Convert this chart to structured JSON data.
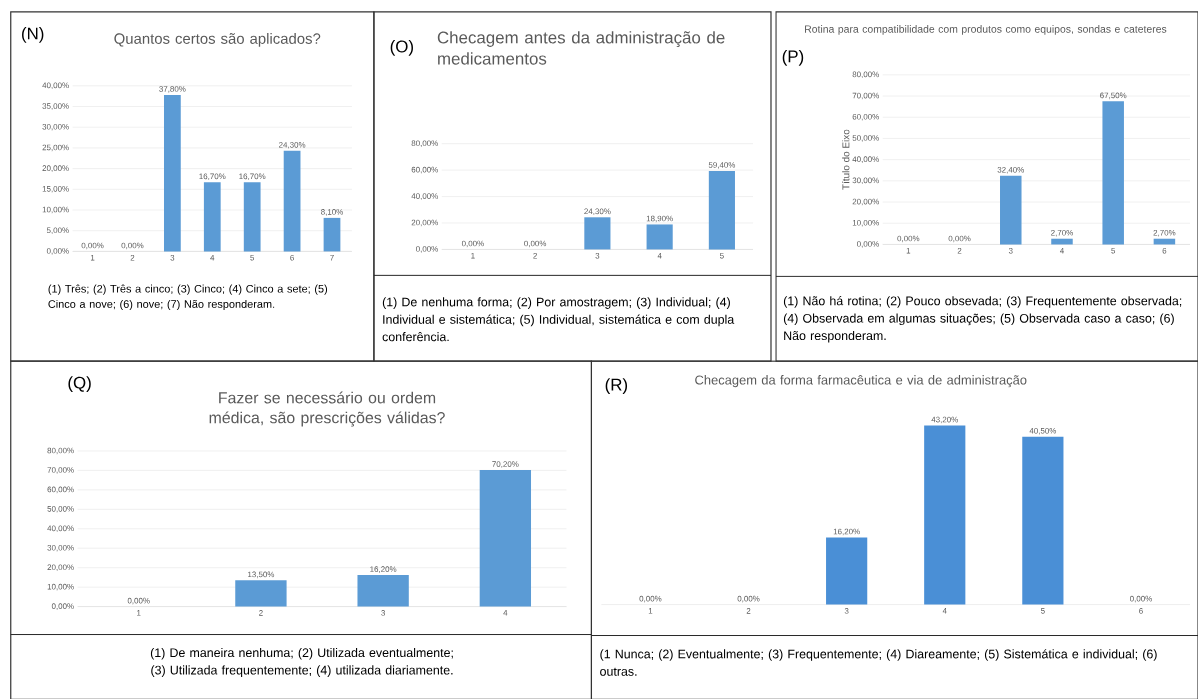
{
  "chart_data": [
    {
      "type": "bar",
      "title": "Quantos certos são aplicados?",
      "categories": [
        "1",
        "2",
        "3",
        "4",
        "5",
        "6",
        "7"
      ],
      "values": [
        0,
        0,
        37.8,
        16.7,
        16.7,
        24.3,
        8.1
      ],
      "value_labels": [
        "0,00%",
        "0,00%",
        "37,80%",
        "16,70%",
        "16,70%",
        "24,30%",
        "8,10%"
      ],
      "color": "#5b9bd5",
      "ylim": [
        0,
        40
      ],
      "yticks": [
        {
          "value": 0,
          "label": "0,00%"
        },
        {
          "value": 5,
          "label": "5,00%"
        },
        {
          "value": 10,
          "label": "10,00%"
        },
        {
          "value": 15,
          "label": "15,00%"
        },
        {
          "value": 20,
          "label": "20,00%"
        },
        {
          "value": 25,
          "label": "25,00%"
        },
        {
          "value": 30,
          "label": "30,00%"
        },
        {
          "value": 35,
          "label": "35,00%"
        },
        {
          "value": 40,
          "label": "40,00%"
        }
      ],
      "grid": "y",
      "annotations": [
        "(N)",
        "(1) Três; (2) Três a cinco; (3) Cinco; (4) Cinco a sete; (5) Cinco a nove; (6) nove; (7) Não responderam."
      ]
    },
    {
      "type": "bar",
      "title": "Checagem antes da administração de medicamentos",
      "categories": [
        "1",
        "2",
        "3",
        "4",
        "5"
      ],
      "values": [
        0,
        0,
        24.3,
        18.9,
        59.4
      ],
      "value_labels": [
        "0,00%",
        "0,00%",
        "24,30%",
        "18,90%",
        "59,40%"
      ],
      "color": "#5b9bd5",
      "ylim": [
        0,
        80
      ],
      "yticks": [
        {
          "value": 0,
          "label": "0,00%"
        },
        {
          "value": 20,
          "label": "20,00%"
        },
        {
          "value": 40,
          "label": "40,00%"
        },
        {
          "value": 60,
          "label": "60,00%"
        },
        {
          "value": 80,
          "label": "80,00%"
        }
      ],
      "grid": "y",
      "annotations": [
        "(O)",
        "(1) De nenhuma forma; (2) Por amostragem; (3) Individual; (4) Individual e sistemática; (5) Individual, sistemática e com dupla conferência."
      ]
    },
    {
      "type": "bar",
      "title": "Rotina para compatibilidade com produtos como equipos, sondas e cateteres",
      "ylabel": "Título do Eixo",
      "categories": [
        "1",
        "2",
        "3",
        "4",
        "5",
        "6"
      ],
      "values": [
        0,
        0,
        32.4,
        2.7,
        67.5,
        2.7
      ],
      "value_labels": [
        "0,00%",
        "0,00%",
        "32,40%",
        "2,70%",
        "67,50%",
        "2,70%"
      ],
      "color": "#5b9bd5",
      "ylim": [
        0,
        80
      ],
      "yticks": [
        {
          "value": 0,
          "label": "0,00%"
        },
        {
          "value": 10,
          "label": "10,00%"
        },
        {
          "value": 20,
          "label": "20,00%"
        },
        {
          "value": 30,
          "label": "30,00%"
        },
        {
          "value": 40,
          "label": "40,00%"
        },
        {
          "value": 50,
          "label": "50,00%"
        },
        {
          "value": 60,
          "label": "60,00%"
        },
        {
          "value": 70,
          "label": "70,00%"
        },
        {
          "value": 80,
          "label": "80,00%"
        }
      ],
      "grid": "y",
      "annotations": [
        "(P)",
        "(1) Não há rotina; (2) Pouco obsevada; (3) Frequentemente observada; (4) Observada em algumas  situações; (5) Observada caso a caso; (6) Não responderam."
      ]
    },
    {
      "type": "bar",
      "title": "Fazer se necessário ou  ordem médica, são prescrições válidas?",
      "categories": [
        "1",
        "2",
        "3",
        "4"
      ],
      "values": [
        0,
        13.5,
        16.2,
        70.2
      ],
      "value_labels": [
        "0,00%",
        "13,50%",
        "16,20%",
        "70,20%"
      ],
      "color": "#5b9bd5",
      "ylim": [
        0,
        80
      ],
      "yticks": [
        {
          "value": 0,
          "label": "0,00%"
        },
        {
          "value": 10,
          "label": "10,00%"
        },
        {
          "value": 20,
          "label": "20,00%"
        },
        {
          "value": 30,
          "label": "30,00%"
        },
        {
          "value": 40,
          "label": "40,00%"
        },
        {
          "value": 50,
          "label": "50,00%"
        },
        {
          "value": 60,
          "label": "60,00%"
        },
        {
          "value": 70,
          "label": "70,00%"
        },
        {
          "value": 80,
          "label": "80,00%"
        }
      ],
      "grid": "y",
      "annotations": [
        "(Q)",
        "(1) De maneira nenhuma; (2) Utilizada eventualmente; (3) Utilizada frequentemente; (4) utilizada diariamente."
      ]
    },
    {
      "type": "bar",
      "title": "Checagem da forma farmacêutica e via de administração",
      "categories": [
        "1",
        "2",
        "3",
        "4",
        "5",
        "6"
      ],
      "values": [
        0,
        0,
        16.2,
        43.2,
        40.5,
        0
      ],
      "value_labels": [
        "0,00%",
        "0,00%",
        "16,20%",
        "43,20%",
        "40,50%",
        "0,00%"
      ],
      "color": "#4a8fd6",
      "tick_labels": "x",
      "annotations": [
        "(R)",
        "(1 Nunca; (2) Eventualmente; (3) Frequentemente; (4) Diareamente; (5) Sistemática e individual; (6) outras."
      ]
    }
  ]
}
